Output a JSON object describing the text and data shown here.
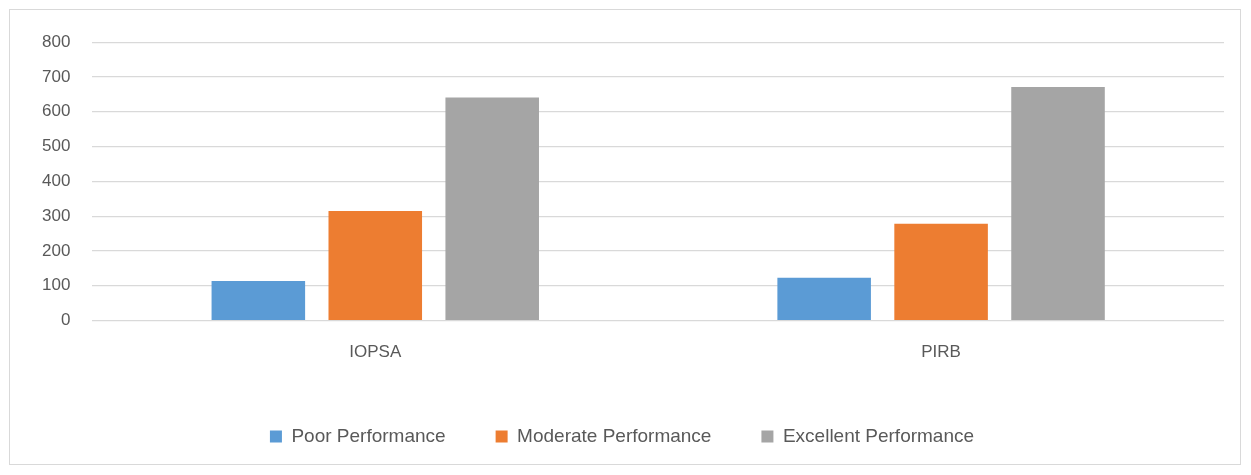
{
  "chart_data": {
    "type": "bar",
    "categories": [
      "IOPSA",
      "PIRB"
    ],
    "series": [
      {
        "name": "Poor Performance",
        "color": "#5b9bd5",
        "values": [
          114,
          123
        ]
      },
      {
        "name": "Moderate Performance",
        "color": "#ed7d31",
        "values": [
          315,
          278
        ]
      },
      {
        "name": "Excellent Performance",
        "color": "#a5a5a5",
        "values": [
          641,
          671
        ]
      }
    ],
    "ylim": [
      0,
      800
    ],
    "yticks": [
      0,
      100,
      200,
      300,
      400,
      500,
      600,
      700,
      800
    ],
    "grid": "y",
    "legend": "bottom"
  }
}
